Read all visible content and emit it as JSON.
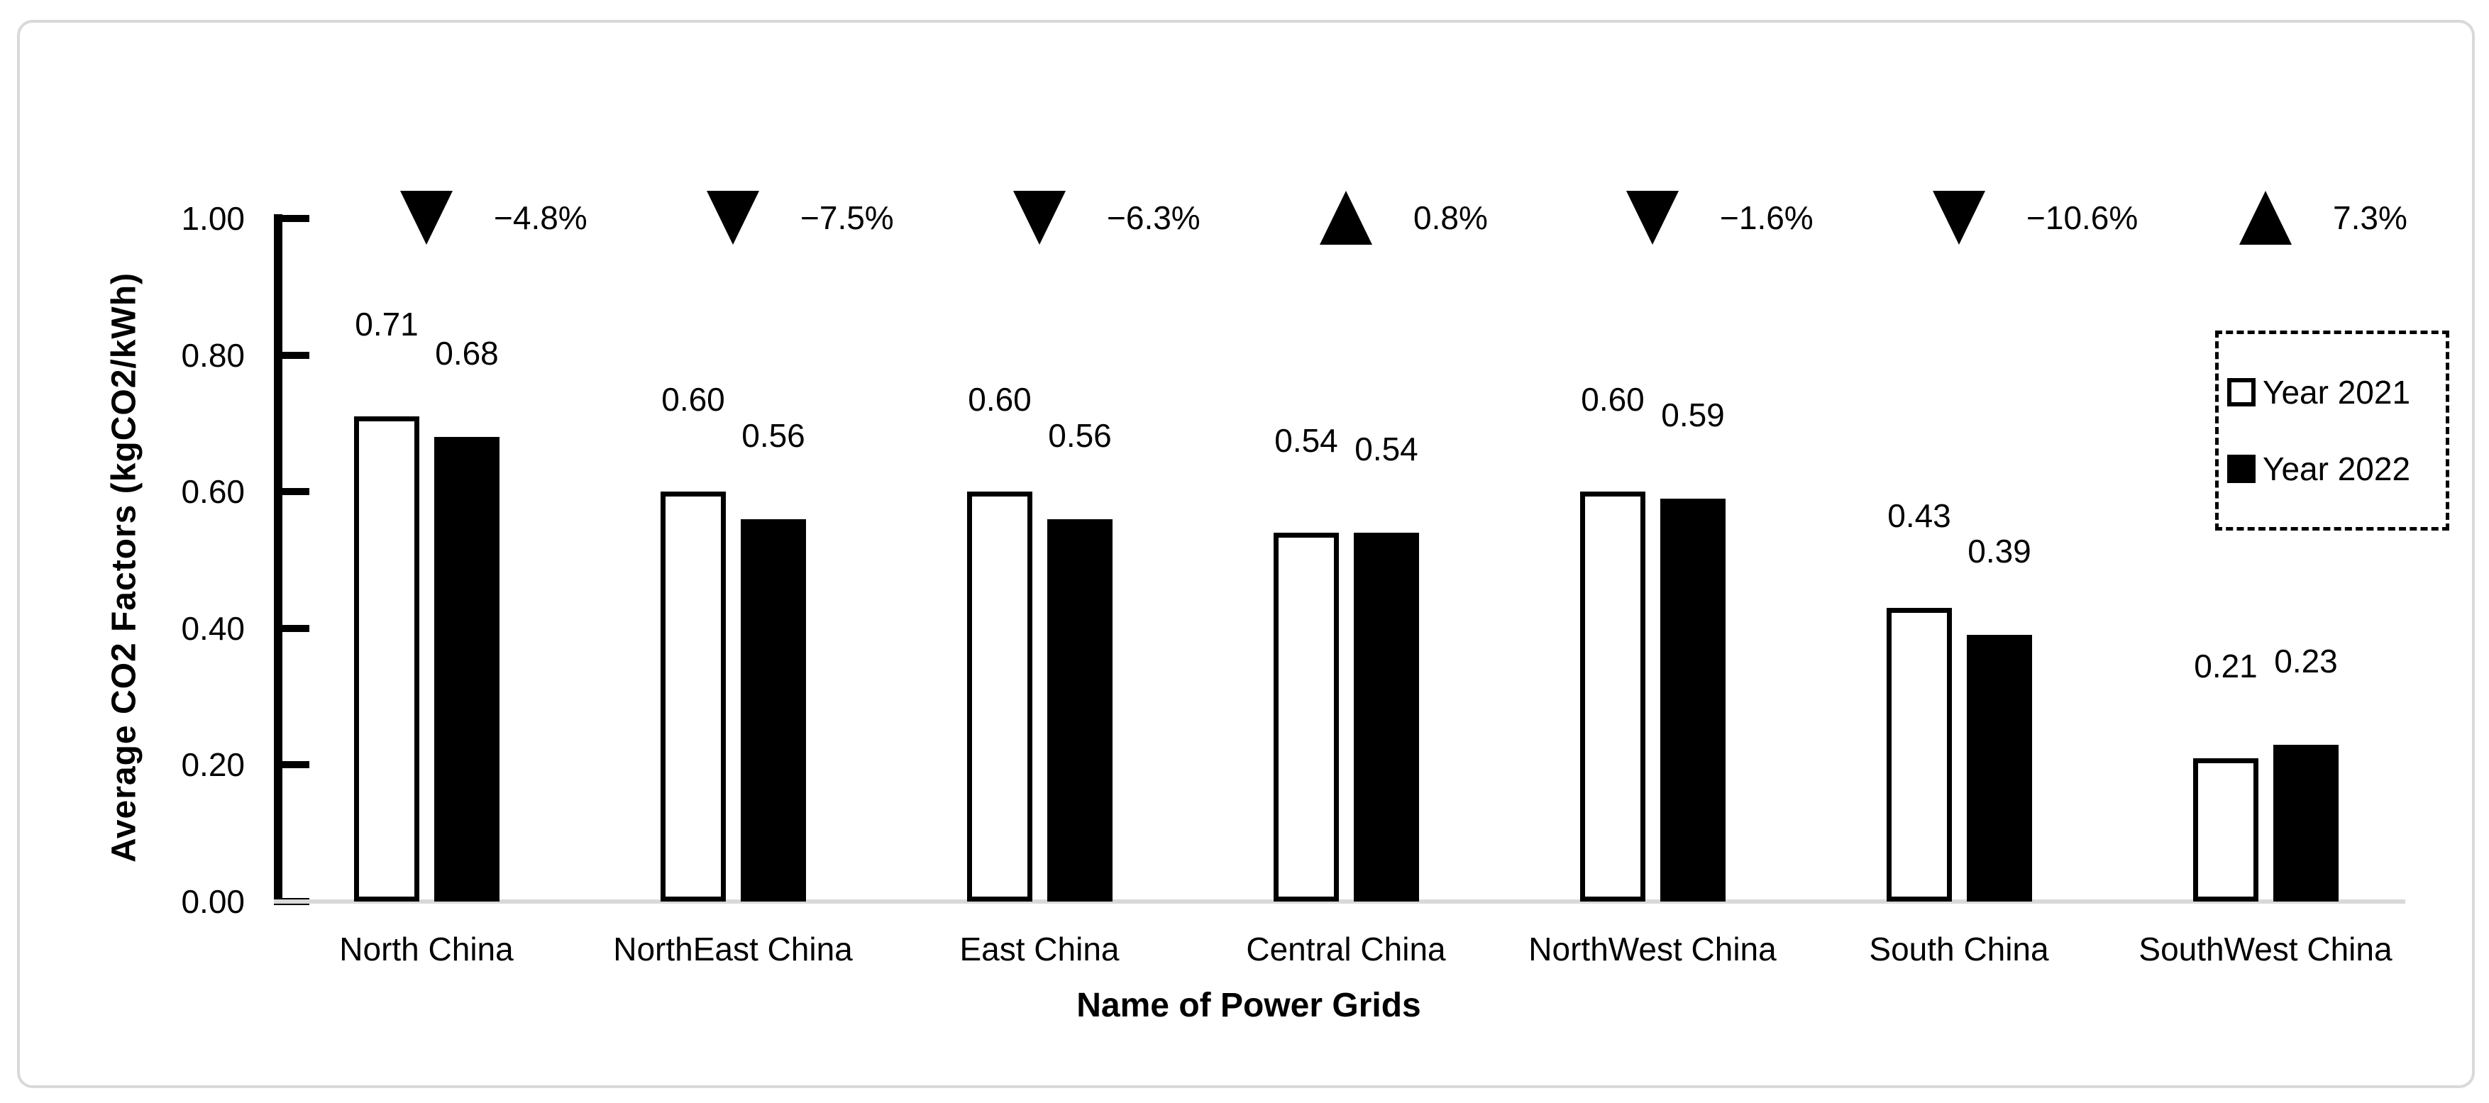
{
  "figure": {
    "background": "#ffffff",
    "border_color": "#d9d9d9"
  },
  "chart_data": {
    "type": "bar",
    "title": "",
    "xlabel": "Name of Power Grids",
    "ylabel": "Average CO2 Factors (kgCO2/kWh)",
    "ylim": [
      0,
      1.0
    ],
    "grid": "off",
    "legend_position": "right",
    "ytick_labels": [
      "1.00",
      "0.80",
      "0.60",
      "0.40",
      "0.20",
      "0.00"
    ],
    "ytick_values": [
      1.0,
      0.8,
      0.6,
      0.4,
      0.2,
      0.0
    ],
    "categories": [
      "North China",
      "NorthEast China",
      "East China",
      "Central China",
      "NorthWest China",
      "South China",
      "SouthWest China"
    ],
    "series": [
      {
        "name": "Year 2021",
        "fill": "#ffffff",
        "outline": "#000000",
        "values": [
          0.71,
          0.6,
          0.6,
          0.54,
          0.6,
          0.43,
          0.21
        ],
        "value_labels": [
          "0.71",
          "0.60",
          "0.60",
          "0.54",
          "0.60",
          "0.43",
          "0.21"
        ]
      },
      {
        "name": "Year 2022",
        "fill": "#000000",
        "outline": "#000000",
        "values": [
          0.68,
          0.56,
          0.56,
          0.54,
          0.59,
          0.39,
          0.23
        ],
        "value_labels": [
          "0.68",
          "0.56",
          "0.56",
          "0.54",
          "0.59",
          "0.39",
          "0.23"
        ]
      }
    ],
    "change_annotations": [
      {
        "direction": "down",
        "label": "−4.8%"
      },
      {
        "direction": "down",
        "label": "−7.5%"
      },
      {
        "direction": "down",
        "label": "−6.3%"
      },
      {
        "direction": "up",
        "label": "0.8%"
      },
      {
        "direction": "down",
        "label": "−1.6%"
      },
      {
        "direction": "down",
        "label": "−10.6%"
      },
      {
        "direction": "up",
        "label": "7.3%"
      }
    ],
    "colors": {
      "axis": "#000000",
      "baseline": "#d9d9d9",
      "text": "#000000",
      "annotation": "#000000"
    }
  }
}
